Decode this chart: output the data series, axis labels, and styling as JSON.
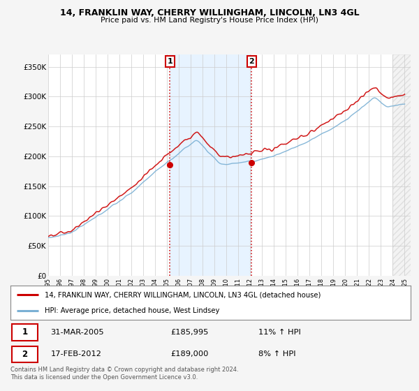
{
  "title1": "14, FRANKLIN WAY, CHERRY WILLINGHAM, LINCOLN, LN3 4GL",
  "title2": "Price paid vs. HM Land Registry's House Price Index (HPI)",
  "bg_color": "#f5f5f5",
  "plot_bg_color": "#ffffff",
  "red_line_label": "14, FRANKLIN WAY, CHERRY WILLINGHAM, LINCOLN, LN3 4GL (detached house)",
  "blue_line_label": "HPI: Average price, detached house, West Lindsey",
  "transaction1_date": "31-MAR-2005",
  "transaction1_price": "£185,995",
  "transaction1_hpi": "11% ↑ HPI",
  "transaction2_date": "17-FEB-2012",
  "transaction2_price": "£189,000",
  "transaction2_hpi": "8% ↑ HPI",
  "footer": "Contains HM Land Registry data © Crown copyright and database right 2024.\nThis data is licensed under the Open Government Licence v3.0.",
  "ylim": [
    0,
    370000
  ],
  "yticks": [
    0,
    50000,
    100000,
    150000,
    200000,
    250000,
    300000,
    350000
  ],
  "ytick_labels": [
    "£0",
    "£50K",
    "£100K",
    "£150K",
    "£200K",
    "£250K",
    "£300K",
    "£350K"
  ],
  "transaction1_x": 2005.25,
  "transaction1_y": 185995,
  "transaction2_x": 2012.12,
  "transaction2_y": 189000,
  "red_color": "#cc0000",
  "blue_color": "#7ab0d4",
  "vline_color": "#cc0000",
  "marker_box_color": "#cc0000",
  "shade_color": "#ddeeff",
  "hatch_color": "#cccccc",
  "xmin": 1995,
  "xmax": 2025
}
